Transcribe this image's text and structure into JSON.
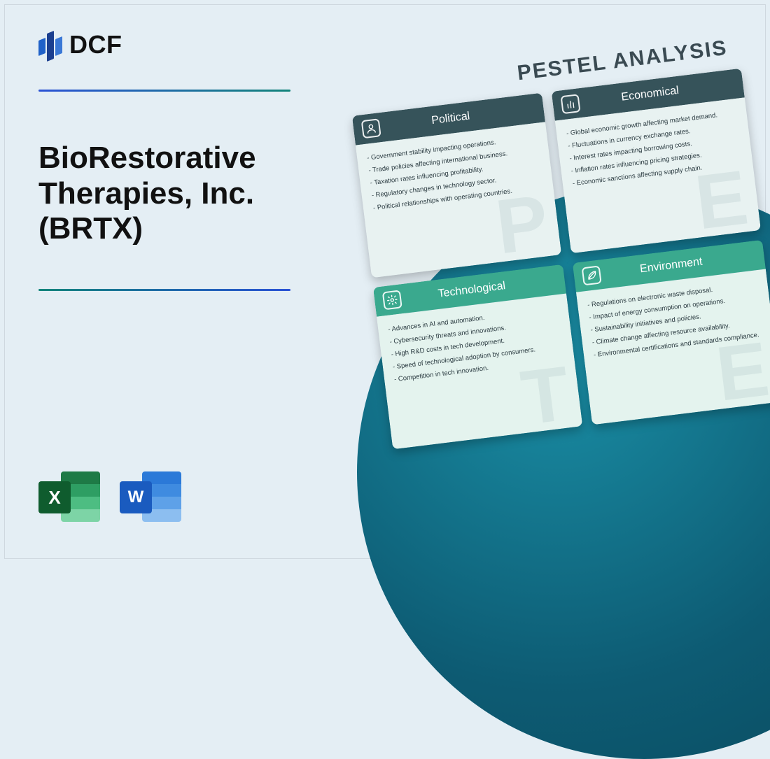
{
  "brand": {
    "name": "DCF"
  },
  "title": "BioRestorative Therapies, Inc. (BRTX)",
  "pestel_heading": "PESTEL ANALYSIS",
  "colors": {
    "page_bg": "#e4eef4",
    "rule_gradient_from": "#2a52d5",
    "rule_gradient_to": "#12847a",
    "circle_inner": "#1a8fa6",
    "circle_outer": "#0b4a5e",
    "head_dark": "#36535a",
    "head_teal": "#3aa98e",
    "body_light": "#e8f2f1",
    "body_mint": "#e4f3ee"
  },
  "apps": {
    "excel": {
      "letter": "X",
      "badge_color": "#0f5c2e"
    },
    "word": {
      "letter": "W",
      "badge_color": "#1a5bbf"
    }
  },
  "cards": [
    {
      "key": "political",
      "title": "Political",
      "watermark": "P",
      "head_class": "head-dark",
      "body_class": "body-light",
      "icon": "person",
      "items": [
        "Government stability impacting operations.",
        "Trade policies affecting international business.",
        "Taxation rates influencing profitability.",
        "Regulatory changes in technology sector.",
        "Political relationships with operating countries."
      ]
    },
    {
      "key": "economical",
      "title": "Economical",
      "watermark": "E",
      "head_class": "head-dark",
      "body_class": "body-light",
      "icon": "bars",
      "items": [
        "Global economic growth affecting market demand.",
        "Fluctuations in currency exchange rates.",
        "Interest rates impacting borrowing costs.",
        "Inflation rates influencing pricing strategies.",
        "Economic sanctions affecting supply chain."
      ]
    },
    {
      "key": "technological",
      "title": "Technological",
      "watermark": "T",
      "head_class": "head-teal",
      "body_class": "body-mint",
      "icon": "gear",
      "items": [
        "Advances in AI and automation.",
        "Cybersecurity threats and innovations.",
        "High R&D costs in tech development.",
        "Speed of technological adoption by consumers.",
        "Competition in tech innovation."
      ]
    },
    {
      "key": "environment",
      "title": "Environment",
      "watermark": "E",
      "head_class": "head-teal",
      "body_class": "body-mint",
      "icon": "leaf",
      "items": [
        "Regulations on electronic waste disposal.",
        "Impact of energy consumption on operations.",
        "Sustainability initiatives and policies.",
        "Climate change affecting resource availability.",
        "Environmental certifications and standards compliance."
      ]
    }
  ]
}
